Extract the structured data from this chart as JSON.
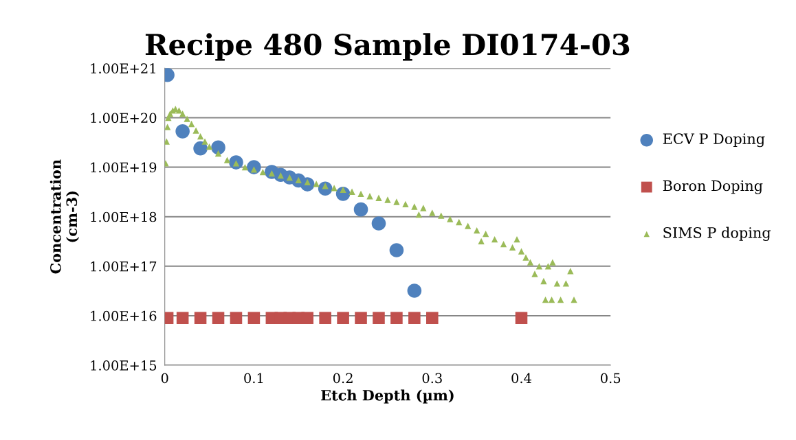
{
  "chart_data": {
    "type": "scatter",
    "title": "Recipe 480 Sample DI0174-03",
    "xlabel": "Etch Depth (µm)",
    "ylabel": "Concentration\n(cm-3)",
    "log": "y",
    "grid": "y",
    "legend": "right",
    "xlim": [
      0,
      0.5
    ],
    "xticks": [
      0,
      0.1,
      0.2,
      0.3,
      0.4,
      0.5
    ],
    "ylim": [
      1000000000000000.0,
      1e+21
    ],
    "yticks": [
      {
        "value": 1000000000000000.0,
        "label": "1.00E+15"
      },
      {
        "value": 1e+16,
        "label": "1.00E+16"
      },
      {
        "value": 1e+17,
        "label": "1.00E+17"
      },
      {
        "value": 1e+18,
        "label": "1.00E+18"
      },
      {
        "value": 1e+19,
        "label": "1.00E+19"
      },
      {
        "value": 1e+20,
        "label": "1.00E+20"
      },
      {
        "value": 1e+21,
        "label": "1.00E+21"
      }
    ],
    "series": [
      {
        "name": "ECV P Doping",
        "color": "#4f81bd",
        "marker": "circle",
        "x": [
          0.003,
          0.02,
          0.04,
          0.06,
          0.08,
          0.1,
          0.12,
          0.13,
          0.14,
          0.15,
          0.16,
          0.18,
          0.2,
          0.22,
          0.24,
          0.26,
          0.28
        ],
        "values": [
          7.3e+20,
          5.3e+19,
          2.4e+19,
          2.5e+19,
          1.25e+19,
          1e+19,
          8e+18,
          7e+18,
          6.2e+18,
          5.4e+18,
          4.5e+18,
          3.7e+18,
          2.9e+18,
          1.4e+18,
          7.3e+17,
          2.1e+17,
          3.2e+16
        ]
      },
      {
        "name": "Boron Doping",
        "color": "#c0504d",
        "marker": "square",
        "x": [
          0.003,
          0.02,
          0.04,
          0.06,
          0.08,
          0.1,
          0.12,
          0.13,
          0.14,
          0.15,
          0.16,
          0.18,
          0.2,
          0.22,
          0.24,
          0.26,
          0.28,
          0.3,
          0.4
        ],
        "values": [
          9000000000000000.0,
          9000000000000000.0,
          9000000000000000.0,
          9000000000000000.0,
          9000000000000000.0,
          9000000000000000.0,
          9000000000000000.0,
          9000000000000000.0,
          9000000000000000.0,
          9000000000000000.0,
          9000000000000000.0,
          9000000000000000.0,
          9000000000000000.0,
          9000000000000000.0,
          9000000000000000.0,
          9000000000000000.0,
          9000000000000000.0,
          9000000000000000.0,
          9000000000000000.0
        ]
      },
      {
        "name": "SIMS P doping",
        "color": "#9bbb59",
        "marker": "triangle",
        "x": [
          0.001,
          0.002,
          0.003,
          0.004,
          0.006,
          0.009,
          0.012,
          0.016,
          0.02,
          0.025,
          0.03,
          0.035,
          0.04,
          0.045,
          0.05,
          0.06,
          0.07,
          0.08,
          0.09,
          0.1,
          0.11,
          0.12,
          0.13,
          0.14,
          0.15,
          0.16,
          0.17,
          0.18,
          0.19,
          0.2,
          0.21,
          0.22,
          0.23,
          0.24,
          0.25,
          0.26,
          0.27,
          0.28,
          0.285,
          0.29,
          0.3,
          0.31,
          0.32,
          0.33,
          0.34,
          0.35,
          0.355,
          0.36,
          0.37,
          0.38,
          0.39,
          0.395,
          0.4,
          0.405,
          0.41,
          0.415,
          0.42,
          0.425,
          0.427,
          0.43,
          0.434,
          0.435,
          0.44,
          0.444,
          0.45,
          0.455,
          0.459
        ],
        "values": [
          1.2e+19,
          3.3e+19,
          6.5e+19,
          1e+20,
          1.2e+20,
          1.4e+20,
          1.5e+20,
          1.4e+20,
          1.2e+20,
          9.5e+19,
          7.5e+19,
          5.5e+19,
          4.2e+19,
          3.3e+19,
          2.6e+19,
          1.9e+19,
          1.4e+19,
          1.2e+19,
          1e+19,
          9e+18,
          8e+18,
          7.5e+18,
          6.8e+18,
          6.2e+18,
          5.5e+18,
          5e+18,
          4.6e+18,
          4.2e+18,
          3.8e+18,
          3.5e+18,
          3.2e+18,
          2.9e+18,
          2.6e+18,
          2.4e+18,
          2.2e+18,
          2e+18,
          1.8e+18,
          1.6e+18,
          1.1e+18,
          1.5e+18,
          1.2e+18,
          1.05e+18,
          9e+17,
          7.8e+17,
          6.5e+17,
          5.3e+17,
          3.2e+17,
          4.5e+17,
          3.5e+17,
          2.8e+17,
          2.4e+17,
          3.5e+17,
          2e+17,
          1.5e+17,
          1.2e+17,
          7e+16,
          1e+17,
          5e+16,
          2.1e+16,
          1e+17,
          2.1e+16,
          1.2e+17,
          4.5e+16,
          2.1e+16,
          4.5e+16,
          8e+16,
          2.1e+16
        ]
      }
    ]
  }
}
